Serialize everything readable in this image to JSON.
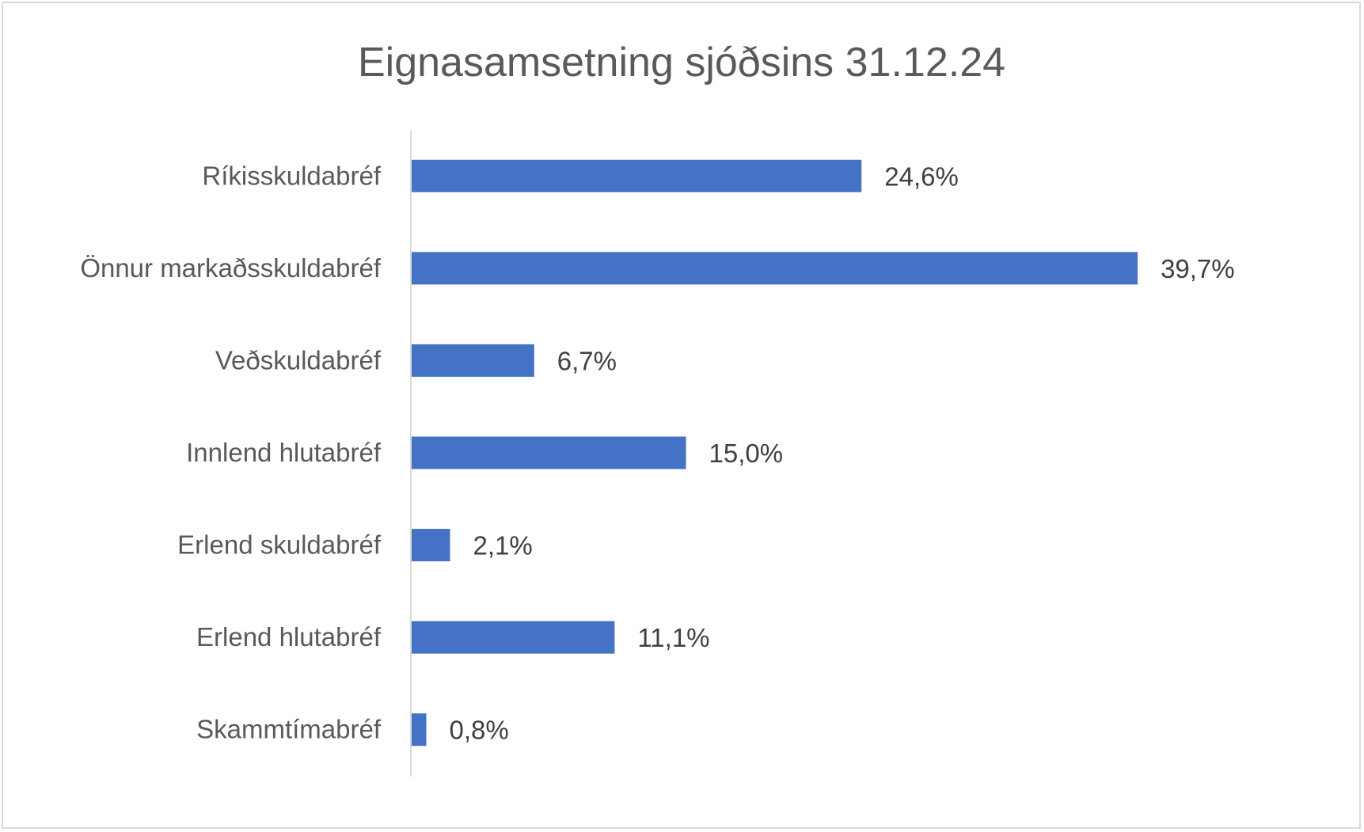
{
  "chart_data": {
    "type": "bar",
    "orientation": "horizontal",
    "title": "Eignasamsetning sjóðsins 31.12.24",
    "xlabel": "",
    "ylabel": "",
    "categories": [
      "Ríkisskuldabréf",
      "Önnur markaðsskuldabréf",
      "Veðskuldabréf",
      "Innlend hlutabréf",
      "Erlend skuldabréf",
      "Erlend hlutabréf",
      "Skammtímabréf"
    ],
    "values": [
      24.6,
      39.7,
      6.7,
      15.0,
      2.1,
      11.1,
      0.8
    ],
    "data_labels": [
      "24,6%",
      "39,7%",
      "6,7%",
      "15,0%",
      "2,1%",
      "11,1%",
      "0,8%"
    ],
    "xlim": [
      0,
      45
    ],
    "grid": false,
    "legend": "none",
    "bar_color": "#4472c4"
  }
}
